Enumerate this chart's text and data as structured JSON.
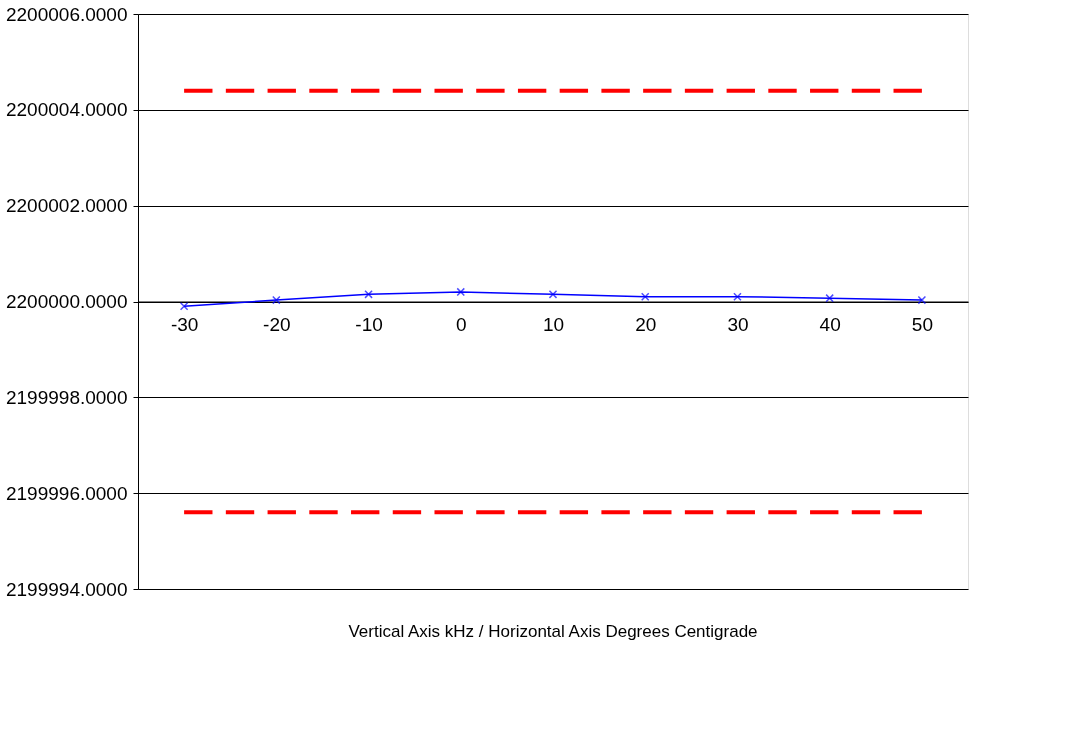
{
  "chart_data": {
    "type": "line",
    "categories": [
      "-30",
      "-20",
      "-10",
      "0",
      "10",
      "20",
      "30",
      "40",
      "50"
    ],
    "series": [
      {
        "color": "#0000ff",
        "marker": "cross",
        "line_style": "solid",
        "values": [
          2199999.9,
          2200000.03,
          2200000.15,
          2200000.2,
          2200000.15,
          2200000.1,
          2200000.1,
          2200000.07,
          2200000.03
        ]
      },
      {
        "color": "#ff0000",
        "marker": "none",
        "line_style": "dashed",
        "values": [
          2200004.4,
          2200004.4,
          2200004.4,
          2200004.4,
          2200004.4,
          2200004.4,
          2200004.4,
          2200004.4,
          2200004.4
        ]
      },
      {
        "color": "#ff0000",
        "marker": "none",
        "line_style": "dashed",
        "values": [
          2199995.6,
          2199995.6,
          2199995.6,
          2199995.6,
          2199995.6,
          2199995.6,
          2199995.6,
          2199995.6,
          2199995.6
        ]
      }
    ],
    "ylim": [
      2199994,
      2200006
    ],
    "yticks": [
      {
        "value": 2199994,
        "label": "2199994.0000"
      },
      {
        "value": 2199996,
        "label": "2199996.0000"
      },
      {
        "value": 2199998,
        "label": "2199998.0000"
      },
      {
        "value": 2200000,
        "label": "2200000.0000"
      },
      {
        "value": 2200002,
        "label": "2200002.0000"
      },
      {
        "value": 2200004,
        "label": "2200004.0000"
      },
      {
        "value": 2200006,
        "label": "2200006.0000"
      }
    ],
    "grid": "y",
    "annotations": [
      "Vertical Axis kHz / Horizontal Axis Degrees Centigrade"
    ]
  }
}
